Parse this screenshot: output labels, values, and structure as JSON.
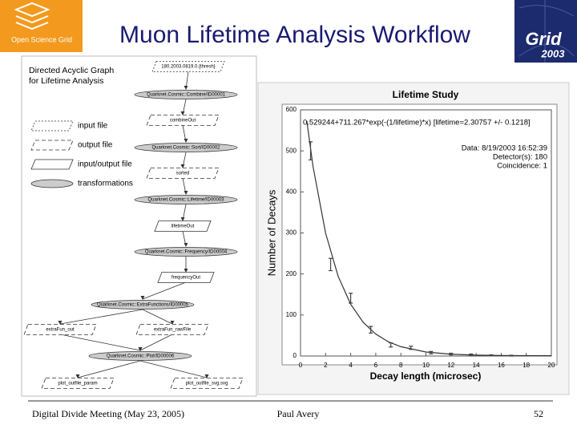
{
  "header": {
    "logo_text": "Open Science Grid",
    "title": "Muon Lifetime Analysis Workflow",
    "logo2_text": "Grid",
    "logo2_year": "2003"
  },
  "diagram": {
    "title": [
      "Directed Acyclic Graph",
      "for Lifetime Analysis"
    ],
    "legend": [
      "input file",
      "output file",
      "input/output file",
      "transformations"
    ],
    "nodes": [
      "180.2003.0819.0.{thresh}",
      "Quarknet.Cosmic::Combine/ID00001",
      "combineOut",
      "Quarknet.Cosmic::Sort/ID00002",
      "sorted",
      "Quarknet.Cosmic::Lifetime/ID00003",
      "lifetimeOut",
      "Quarknet.Cosmic::Frequency/ID00004",
      "frequencyOut",
      "Quarknet.Cosmic::ExtraFunctions/ID00005",
      "extraFun_out",
      "extraFun_rawFile",
      "Quarknet.Cosmic::Plot/ID00006",
      "plot_outfile_param",
      "plot_outfile_svg.svg"
    ]
  },
  "chart_data": {
    "type": "scatter",
    "title": "Lifetime Study",
    "annotations": [
      "0.529244+711.267*exp(-(1/lifetime)*x) [lifetime=2.30757 +/- 0.1218]",
      "Data: 8/19/2003 16:52:39",
      "Detector(s): 180",
      "Coincidence: 1"
    ],
    "x_label": "Decay length (microsec)",
    "y_label": "Number of Decays",
    "x": [
      0.8,
      2.4,
      4.0,
      5.6,
      7.2,
      8.8,
      10.4,
      12.0,
      13.6,
      15.2,
      16.8
    ],
    "values": [
      500,
      223,
      141,
      64,
      27,
      20,
      8,
      5,
      3,
      2,
      1
    ],
    "errors": [
      22,
      15,
      12,
      8,
      5,
      4,
      3,
      2,
      2,
      1,
      1
    ],
    "color": "#444444",
    "fit": {
      "x": [
        0.5,
        1,
        2,
        3,
        4,
        5,
        6,
        7,
        8,
        10,
        12,
        14,
        16,
        20
      ],
      "values": [
        573.2,
        461.6,
        299.5,
        194.3,
        126.2,
        82.0,
        53.4,
        34.7,
        22.7,
        9.8,
        4.4,
        2.2,
        1.2,
        0.7
      ],
      "color": "#333333"
    },
    "xlim": [
      0,
      20
    ],
    "ylim": [
      0,
      600
    ],
    "xticks": [
      0,
      2,
      4,
      6,
      8,
      10,
      12,
      14,
      16,
      18,
      20
    ],
    "yticks": [
      0,
      100,
      200,
      300,
      400,
      500,
      600
    ]
  },
  "footer": {
    "left": "Digital Divide Meeting (May 23, 2005)",
    "center": "Paul Avery",
    "right": "52"
  }
}
